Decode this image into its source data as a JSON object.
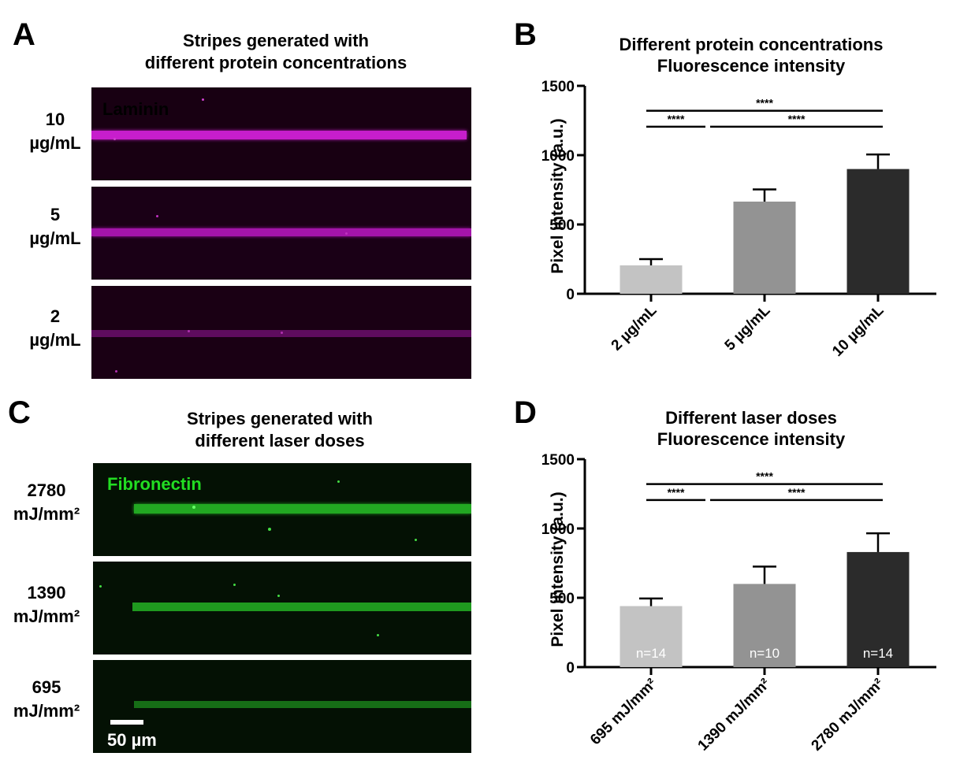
{
  "panels": {
    "A": {
      "letter": "A",
      "title_lines": [
        "Stripes generated with",
        "different protein concentrations"
      ],
      "stain_label": "Laminin",
      "stain_color": "#b000c0",
      "rows": [
        {
          "label_lines": [
            "10",
            "µg/mL"
          ]
        },
        {
          "label_lines": [
            "5",
            "µg/mL"
          ]
        },
        {
          "label_lines": [
            "2",
            "µg/mL"
          ]
        }
      ]
    },
    "C": {
      "letter": "C",
      "title_lines": [
        "Stripes generated with",
        "different laser doses"
      ],
      "stain_label": "Fibronectin",
      "stain_color": "#22dd22",
      "rows": [
        {
          "label_lines": [
            "2780",
            "mJ/mm²"
          ]
        },
        {
          "label_lines": [
            "1390",
            "mJ/mm²"
          ]
        },
        {
          "label_lines": [
            "695",
            "mJ/mm²"
          ]
        }
      ],
      "scale_bar_label": "50 µm"
    }
  },
  "chart_data": [
    {
      "panel": "B",
      "letter": "B",
      "type": "bar",
      "title": "Different protein concentrations\nFluorescence intensity",
      "title_lines": [
        "Different protein concentrations",
        "Fluorescence intensity"
      ],
      "xlabel": "",
      "ylabel": "Pixel intensity (a.u.)",
      "ylim": [
        0,
        1500
      ],
      "yticks": [
        "0",
        "500",
        "1000",
        "1500"
      ],
      "categories": [
        "2 µg/mL",
        "5 µg/mL",
        "10 µg/mL"
      ],
      "values": [
        205,
        665,
        900
      ],
      "errors": [
        45,
        88,
        105
      ],
      "bar_colors": [
        "#c3c3c3",
        "#939393",
        "#2b2b2b"
      ],
      "n_labels": [
        "",
        "",
        ""
      ],
      "significance": [
        {
          "from": 0,
          "to": 2,
          "label": "****"
        },
        {
          "from": 0,
          "to": 1,
          "label": "****"
        },
        {
          "from": 1,
          "to": 2,
          "label": "****"
        }
      ],
      "grid": false
    },
    {
      "panel": "D",
      "letter": "D",
      "type": "bar",
      "title": "Different laser doses\nFluorescence intensity",
      "title_lines": [
        "Different laser doses",
        "Fluorescence intensity"
      ],
      "xlabel": "",
      "ylabel": "Pixel intensity (a.u.)",
      "ylim": [
        0,
        1500
      ],
      "yticks": [
        "0",
        "500",
        "1000",
        "1500"
      ],
      "categories": [
        "695 mJ/mm²",
        "1390 mJ/mm²",
        "2780 mJ/mm²"
      ],
      "values": [
        440,
        600,
        830
      ],
      "errors": [
        55,
        125,
        135
      ],
      "bar_colors": [
        "#c3c3c3",
        "#939393",
        "#2b2b2b"
      ],
      "n_labels": [
        "n=14",
        "n=10",
        "n=14"
      ],
      "significance": [
        {
          "from": 0,
          "to": 2,
          "label": "****"
        },
        {
          "from": 0,
          "to": 1,
          "label": "****"
        },
        {
          "from": 1,
          "to": 2,
          "label": "****"
        }
      ],
      "grid": false
    }
  ]
}
